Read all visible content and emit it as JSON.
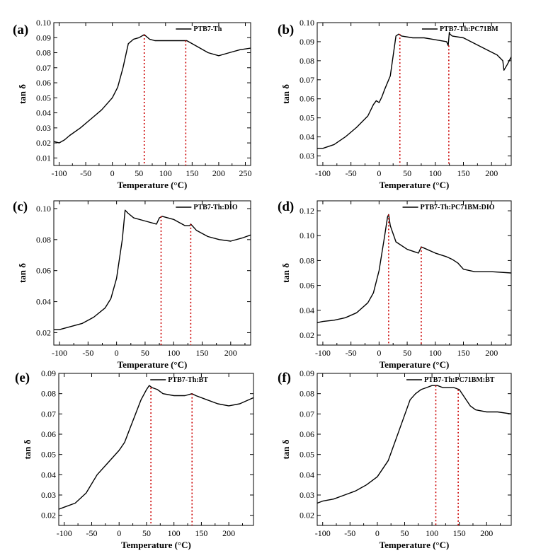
{
  "figure": {
    "axis_color": "#000000",
    "curve_color": "#000000",
    "marker_line_color": "#cc0000"
  },
  "chart_data": [
    {
      "id": "a",
      "type": "line",
      "panel_label": "(a)",
      "legend": "PTB7-Th",
      "xlabel": "Temperature (°C)",
      "ylabel": "tan δ",
      "xlim": [
        -110,
        260
      ],
      "ylim": [
        0.005,
        0.1
      ],
      "xticks": [
        -100,
        -50,
        0,
        50,
        100,
        150,
        200,
        250
      ],
      "yticks": [
        0.01,
        0.02,
        0.03,
        0.04,
        0.05,
        0.06,
        0.07,
        0.08,
        0.09,
        0.1
      ],
      "ytick_labels": [
        "0.01",
        "0.02",
        "0.03",
        "0.04",
        "0.05",
        "0.06",
        "0.07",
        "0.08",
        "0.09",
        "0.10"
      ],
      "series": [
        {
          "name": "PTB7-Th",
          "x": [
            -110,
            -100,
            -90,
            -80,
            -60,
            -40,
            -20,
            0,
            10,
            20,
            30,
            40,
            50,
            60,
            70,
            80,
            100,
            120,
            140,
            160,
            180,
            200,
            220,
            240,
            260
          ],
          "y": [
            0.021,
            0.02,
            0.022,
            0.025,
            0.03,
            0.036,
            0.042,
            0.05,
            0.057,
            0.07,
            0.086,
            0.089,
            0.09,
            0.092,
            0.089,
            0.088,
            0.088,
            0.088,
            0.088,
            0.084,
            0.08,
            0.078,
            0.08,
            0.082,
            0.083
          ]
        }
      ],
      "markers_x": [
        60,
        138
      ]
    },
    {
      "id": "b",
      "type": "line",
      "panel_label": "(b)",
      "legend": "PTB7-Th:PC71BM",
      "xlabel": "Temperature (°C)",
      "ylabel": "tan δ",
      "xlim": [
        -110,
        235
      ],
      "ylim": [
        0.025,
        0.1
      ],
      "xticks": [
        -100,
        -50,
        0,
        50,
        100,
        150,
        200
      ],
      "yticks": [
        0.03,
        0.04,
        0.05,
        0.06,
        0.07,
        0.08,
        0.09,
        0.1
      ],
      "ytick_labels": [
        "0.03",
        "0.04",
        "0.05",
        "0.06",
        "0.07",
        "0.08",
        "0.09",
        "0.10"
      ],
      "series": [
        {
          "name": "PTB7-Th:PC71BM",
          "x": [
            -110,
            -100,
            -80,
            -60,
            -40,
            -20,
            -10,
            -5,
            0,
            5,
            10,
            20,
            30,
            35,
            40,
            60,
            80,
            100,
            120,
            123,
            125,
            126,
            130,
            150,
            170,
            190,
            210,
            220,
            222,
            228,
            235
          ],
          "y": [
            0.034,
            0.034,
            0.036,
            0.04,
            0.045,
            0.051,
            0.057,
            0.059,
            0.058,
            0.061,
            0.065,
            0.072,
            0.093,
            0.094,
            0.093,
            0.092,
            0.092,
            0.091,
            0.09,
            0.088,
            0.095,
            0.094,
            0.093,
            0.092,
            0.089,
            0.086,
            0.083,
            0.08,
            0.075,
            0.078,
            0.082
          ]
        }
      ],
      "markers_x": [
        37,
        124
      ]
    },
    {
      "id": "c",
      "type": "line",
      "panel_label": "(c)",
      "legend": "PTB7-Th:DIO",
      "xlabel": "Temperature (°C)",
      "ylabel": "tan δ",
      "xlim": [
        -110,
        235
      ],
      "ylim": [
        0.012,
        0.105
      ],
      "xticks": [
        -100,
        -50,
        0,
        50,
        100,
        150,
        200
      ],
      "yticks": [
        0.02,
        0.04,
        0.06,
        0.08,
        0.1
      ],
      "ytick_labels": [
        "0.02",
        "0.04",
        "0.06",
        "0.08",
        "0.10"
      ],
      "series": [
        {
          "name": "PTB7-Th:DIO",
          "x": [
            -110,
            -100,
            -80,
            -60,
            -40,
            -20,
            -10,
            0,
            10,
            15,
            20,
            30,
            50,
            70,
            75,
            80,
            100,
            120,
            128,
            130,
            140,
            160,
            180,
            200,
            220,
            235
          ],
          "y": [
            0.022,
            0.022,
            0.024,
            0.026,
            0.03,
            0.036,
            0.042,
            0.055,
            0.08,
            0.099,
            0.097,
            0.094,
            0.092,
            0.09,
            0.094,
            0.095,
            0.093,
            0.089,
            0.089,
            0.09,
            0.086,
            0.082,
            0.08,
            0.079,
            0.081,
            0.083
          ]
        }
      ],
      "markers_x": [
        78,
        130
      ]
    },
    {
      "id": "d",
      "type": "line",
      "panel_label": "(d)",
      "legend": "PTB7-Th:PC71BM:DIO",
      "xlabel": "Temperature (°C)",
      "ylabel": "tan δ",
      "xlim": [
        -110,
        235
      ],
      "ylim": [
        0.012,
        0.128
      ],
      "xticks": [
        -100,
        -50,
        0,
        50,
        100,
        150,
        200
      ],
      "yticks": [
        0.02,
        0.04,
        0.06,
        0.08,
        0.1,
        0.12
      ],
      "ytick_labels": [
        "0.02",
        "0.04",
        "0.06",
        "0.08",
        "0.10",
        "0.12"
      ],
      "series": [
        {
          "name": "PTB7-Th:PC71BM:DIO",
          "x": [
            -110,
            -100,
            -80,
            -60,
            -40,
            -20,
            -10,
            0,
            10,
            15,
            17,
            20,
            30,
            50,
            70,
            75,
            80,
            100,
            120,
            130,
            140,
            150,
            170,
            200,
            235
          ],
          "y": [
            0.03,
            0.031,
            0.032,
            0.034,
            0.038,
            0.046,
            0.054,
            0.072,
            0.1,
            0.115,
            0.117,
            0.108,
            0.095,
            0.089,
            0.086,
            0.091,
            0.09,
            0.086,
            0.083,
            0.081,
            0.078,
            0.073,
            0.071,
            0.071,
            0.07
          ]
        }
      ],
      "markers_x": [
        17,
        75
      ]
    },
    {
      "id": "e",
      "type": "line",
      "panel_label": "(e)",
      "legend": "PTB7-Th:BT",
      "xlabel": "Temperature (°C)",
      "ylabel": "tan δ",
      "xlim": [
        -110,
        245
      ],
      "ylim": [
        0.015,
        0.09
      ],
      "xticks": [
        -100,
        -50,
        0,
        50,
        100,
        150,
        200
      ],
      "yticks": [
        0.02,
        0.03,
        0.04,
        0.05,
        0.06,
        0.07,
        0.08,
        0.09
      ],
      "ytick_labels": [
        "0.02",
        "0.03",
        "0.04",
        "0.05",
        "0.06",
        "0.07",
        "0.08",
        "0.09"
      ],
      "series": [
        {
          "name": "PTB7-Th:BT",
          "x": [
            -110,
            -100,
            -80,
            -60,
            -40,
            -20,
            0,
            10,
            20,
            30,
            40,
            50,
            55,
            60,
            70,
            80,
            100,
            120,
            133,
            140,
            160,
            180,
            200,
            220,
            245
          ],
          "y": [
            0.023,
            0.024,
            0.026,
            0.031,
            0.04,
            0.046,
            0.052,
            0.056,
            0.063,
            0.07,
            0.077,
            0.082,
            0.084,
            0.083,
            0.082,
            0.08,
            0.079,
            0.079,
            0.08,
            0.079,
            0.077,
            0.075,
            0.074,
            0.075,
            0.078
          ]
        }
      ],
      "markers_x": [
        58,
        133
      ]
    },
    {
      "id": "f",
      "type": "line",
      "panel_label": "(f)",
      "legend": "PTB7-Th:PC71BM:BT",
      "xlabel": "Temperature (°C)",
      "ylabel": "tan δ",
      "xlim": [
        -110,
        245
      ],
      "ylim": [
        0.015,
        0.09
      ],
      "xticks": [
        -100,
        -50,
        0,
        50,
        100,
        150,
        200
      ],
      "yticks": [
        0.02,
        0.03,
        0.04,
        0.05,
        0.06,
        0.07,
        0.08,
        0.09
      ],
      "ytick_labels": [
        "0.02",
        "0.03",
        "0.04",
        "0.05",
        "0.06",
        "0.07",
        "0.08",
        "0.09"
      ],
      "series": [
        {
          "name": "PTB7-Th:PC71BM:BT",
          "x": [
            -110,
            -100,
            -80,
            -60,
            -40,
            -20,
            0,
            20,
            40,
            60,
            70,
            80,
            90,
            100,
            110,
            120,
            140,
            150,
            160,
            170,
            180,
            200,
            220,
            245
          ],
          "y": [
            0.026,
            0.027,
            0.028,
            0.03,
            0.032,
            0.035,
            0.039,
            0.047,
            0.062,
            0.077,
            0.08,
            0.082,
            0.083,
            0.084,
            0.084,
            0.083,
            0.083,
            0.082,
            0.078,
            0.074,
            0.072,
            0.071,
            0.071,
            0.07
          ]
        }
      ],
      "markers_x": [
        107,
        148
      ]
    }
  ]
}
